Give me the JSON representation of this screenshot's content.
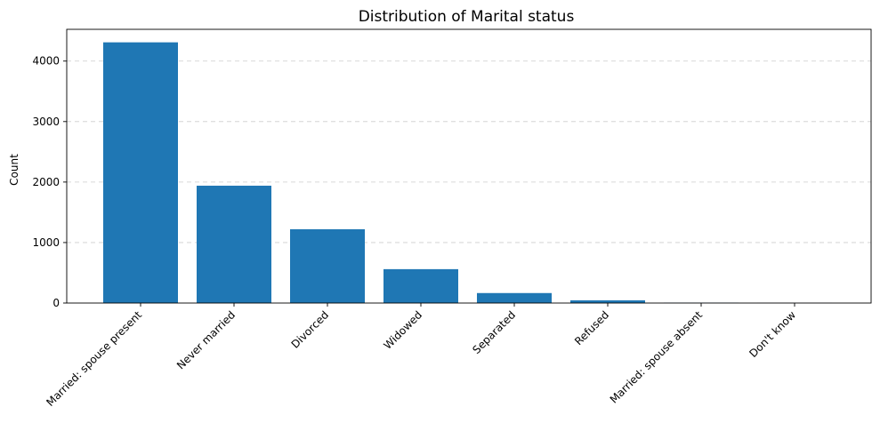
{
  "chart_data": {
    "type": "bar",
    "title": "Distribution of Marital status",
    "xlabel": "",
    "ylabel": "Count",
    "categories": [
      "Married: spouse present",
      "Never married",
      "Divorced",
      "Widowed",
      "Separated",
      "Refused",
      "Married: spouse absent",
      "Don't know"
    ],
    "values": [
      4310,
      1940,
      1220,
      560,
      165,
      45,
      6,
      2
    ],
    "ylim": [
      0,
      4525
    ],
    "yticks": [
      0,
      1000,
      2000,
      3000,
      4000
    ],
    "ytick_labels": [
      "0",
      "1000",
      "2000",
      "3000",
      "4000"
    ],
    "grid": "y-axis, dashed",
    "legend": "none",
    "bar_color": "#1f77b4"
  }
}
